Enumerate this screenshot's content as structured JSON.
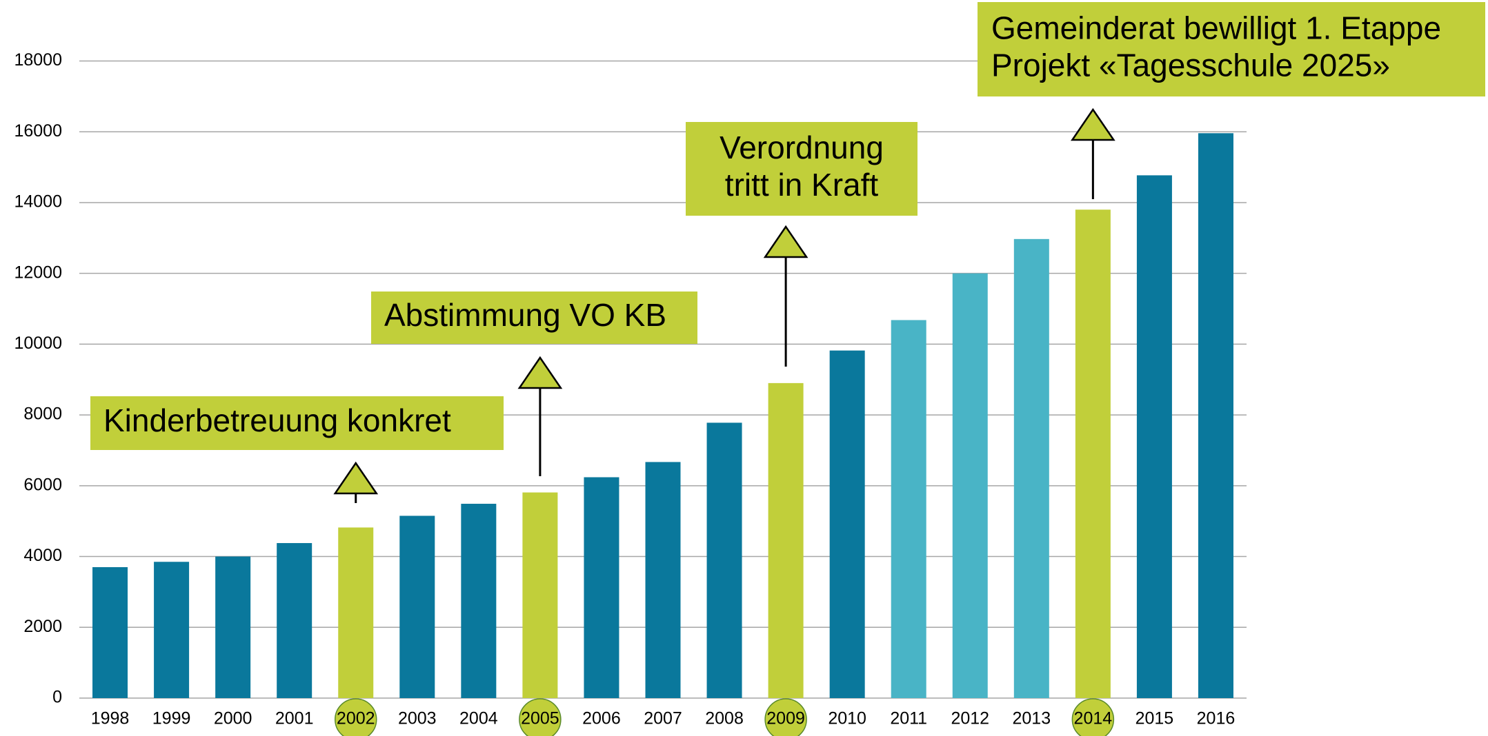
{
  "chart_data": {
    "type": "bar",
    "categories": [
      "1998",
      "1999",
      "2000",
      "2001",
      "2002",
      "2003",
      "2004",
      "2005",
      "2006",
      "2007",
      "2008",
      "2009",
      "2010",
      "2011",
      "2012",
      "2013",
      "2014",
      "2015",
      "2016"
    ],
    "values": [
      3700,
      3850,
      4000,
      4380,
      4820,
      5150,
      5490,
      5810,
      6240,
      6670,
      7780,
      8900,
      9820,
      10680,
      12000,
      12970,
      13800,
      14770,
      15960
    ],
    "colors": [
      "#0a789c",
      "#0a789c",
      "#0a789c",
      "#0a789c",
      "#c1cf3a",
      "#0a789c",
      "#0a789c",
      "#c1cf3a",
      "#0a789c",
      "#0a789c",
      "#0a789c",
      "#c1cf3a",
      "#0a789c",
      "#49b4c6",
      "#49b4c6",
      "#49b4c6",
      "#c1cf3a",
      "#0a789c",
      "#0a789c"
    ],
    "ylim": [
      0,
      18000
    ],
    "yticks": [
      0,
      2000,
      4000,
      6000,
      8000,
      10000,
      12000,
      14000,
      16000,
      18000
    ],
    "grid": true,
    "annotation_color": "#c1cf3a",
    "annotations": [
      {
        "lines": [
          "Kinderbetreuung konkret"
        ],
        "category": "2002"
      },
      {
        "lines": [
          "Abstimmung VO KB"
        ],
        "category": "2005"
      },
      {
        "lines": [
          "Verordnung",
          "tritt in Kraft"
        ],
        "category": "2009"
      },
      {
        "lines": [
          "Gemeinderat bewilligt 1. Etappe",
          "Projekt «Tagesschule 2025»"
        ],
        "category": "2014"
      }
    ]
  }
}
